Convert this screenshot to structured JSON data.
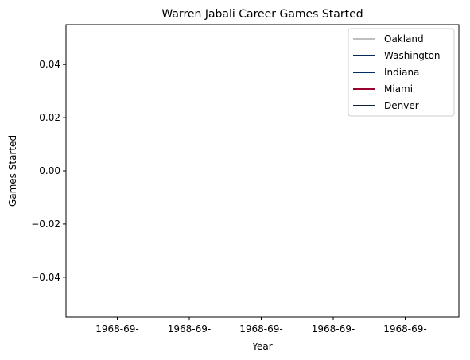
{
  "chart_data": {
    "type": "line",
    "title": "Warren Jabali Career Games Started",
    "xlabel": "Year",
    "ylabel": "Games Started",
    "x_ticks": [
      "1968-69-",
      "1968-69-",
      "1968-69-",
      "1968-69-",
      "1968-69-"
    ],
    "y_ticks": [
      "0.04",
      "0.02",
      "0.00",
      "−0.02",
      "−0.04"
    ],
    "ylim": [
      -0.055,
      0.055
    ],
    "grid": false,
    "legend_position": "top-right",
    "series": [
      {
        "name": "Oakland",
        "color": "#c0c0c0",
        "values": []
      },
      {
        "name": "Washington",
        "color": "#002b5c",
        "values": []
      },
      {
        "name": "Indiana",
        "color": "#002d62",
        "values": []
      },
      {
        "name": "Miami",
        "color": "#98002e",
        "values": []
      },
      {
        "name": "Denver",
        "color": "#0e2240",
        "values": []
      }
    ]
  }
}
